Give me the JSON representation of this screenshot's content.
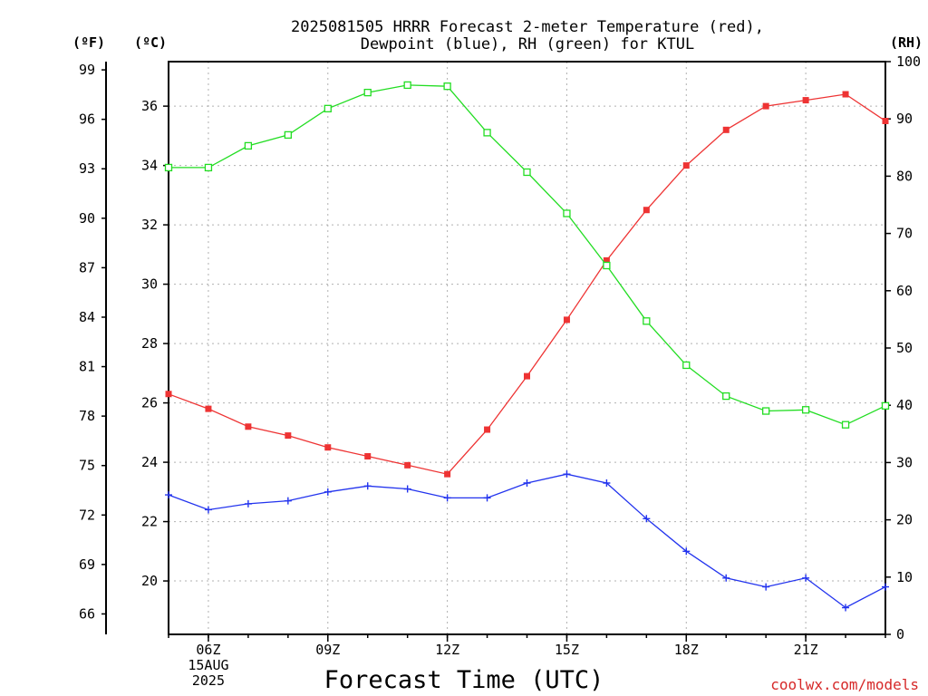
{
  "chart_data": {
    "type": "line",
    "title": [
      "2025081505 HRRR Forecast 2-meter Temperature (red),",
      "Dewpoint (blue), RH (green) for KTUL"
    ],
    "xlabel": "Forecast Time (UTC)",
    "left_outer_unit": "(ºF)",
    "left_inner_unit": "(ºC)",
    "right_unit": "(RH)",
    "credit": "coolwx.com/models",
    "x_hours": [
      5,
      6,
      7,
      8,
      9,
      10,
      11,
      12,
      13,
      14,
      15,
      16,
      17,
      18,
      19,
      20,
      21,
      22,
      23
    ],
    "x_range": [
      5,
      23
    ],
    "x_ticks": [
      {
        "hour": 6,
        "lines": [
          "06Z",
          "15AUG",
          "2025"
        ]
      },
      {
        "hour": 9,
        "lines": [
          "09Z"
        ]
      },
      {
        "hour": 12,
        "lines": [
          "12Z"
        ]
      },
      {
        "hour": 15,
        "lines": [
          "15Z"
        ]
      },
      {
        "hour": 18,
        "lines": [
          "18Z"
        ]
      },
      {
        "hour": 21,
        "lines": [
          "21Z"
        ]
      }
    ],
    "celsius_range": [
      18.2,
      37.5
    ],
    "celsius_ticks": [
      20,
      22,
      24,
      26,
      28,
      30,
      32,
      34,
      36
    ],
    "fahrenheit_ticks": [
      66,
      69,
      72,
      75,
      78,
      81,
      84,
      87,
      90,
      93,
      96,
      99
    ],
    "rh_range": [
      0,
      100
    ],
    "rh_ticks": [
      0,
      10,
      20,
      30,
      40,
      50,
      60,
      70,
      80,
      90,
      100
    ],
    "grid": true,
    "series": [
      {
        "name": "Temperature",
        "unit": "C",
        "color": "#ee3333",
        "marker": "filled-square",
        "values": [
          26.3,
          25.8,
          25.2,
          24.9,
          24.5,
          24.2,
          23.9,
          23.6,
          25.1,
          26.9,
          28.8,
          30.8,
          32.5,
          34.0,
          35.2,
          36.0,
          36.2,
          36.4,
          35.5
        ]
      },
      {
        "name": "Dewpoint",
        "unit": "C",
        "color": "#2233ee",
        "marker": "plus",
        "values": [
          22.9,
          22.4,
          22.6,
          22.7,
          23.0,
          23.2,
          23.1,
          22.8,
          22.8,
          23.3,
          23.6,
          23.3,
          22.1,
          21.0,
          20.1,
          19.8,
          20.1,
          19.1,
          19.8
        ]
      },
      {
        "name": "RH",
        "unit": "%",
        "color": "#22dd22",
        "marker": "open-square",
        "values": [
          81.5,
          81.5,
          85.3,
          87.2,
          91.8,
          94.6,
          95.9,
          95.7,
          87.6,
          80.7,
          73.5,
          64.4,
          54.7,
          47.0,
          41.6,
          39.0,
          39.2,
          36.6,
          39.9
        ]
      }
    ]
  }
}
